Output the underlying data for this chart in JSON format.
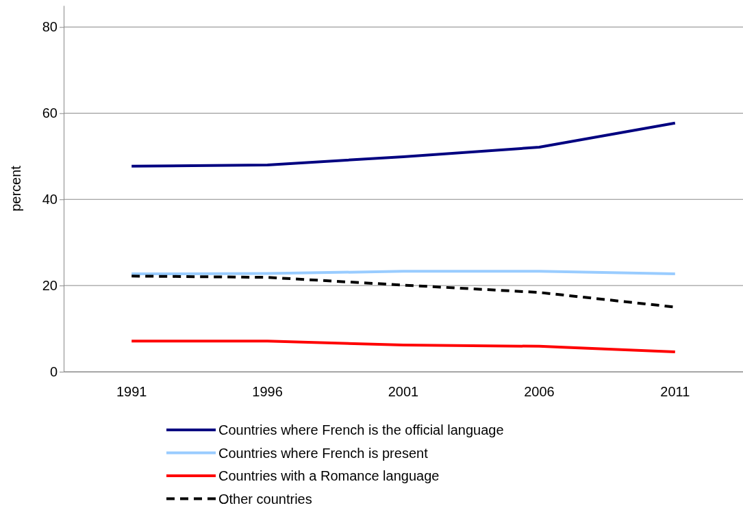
{
  "chart_data": {
    "type": "line",
    "ylabel": "percent",
    "categories": [
      "1991",
      "1996",
      "2001",
      "2006",
      "2011"
    ],
    "series": [
      {
        "name": "Countries where French is the official language",
        "color": "#000080",
        "values": [
          47.7,
          48.0,
          49.9,
          52.1,
          57.7
        ]
      },
      {
        "name": "Countries where French is present",
        "color": "#99ccff",
        "values": [
          22.7,
          22.8,
          23.3,
          23.3,
          22.7
        ]
      },
      {
        "name": "Countries with a Romance language",
        "color": "#ff0000",
        "values": [
          7.1,
          7.1,
          6.2,
          5.9,
          4.6
        ]
      },
      {
        "name": "Other countries",
        "color": "#000000",
        "line_style": "dashed",
        "values": [
          22.2,
          21.9,
          20.1,
          18.4,
          15.0
        ]
      }
    ],
    "ylim": [
      0,
      85
    ],
    "yticks": [
      0,
      20,
      40,
      60,
      80
    ],
    "grid": "y",
    "legend": "bottom",
    "marker": "none",
    "line_style": "solid"
  }
}
